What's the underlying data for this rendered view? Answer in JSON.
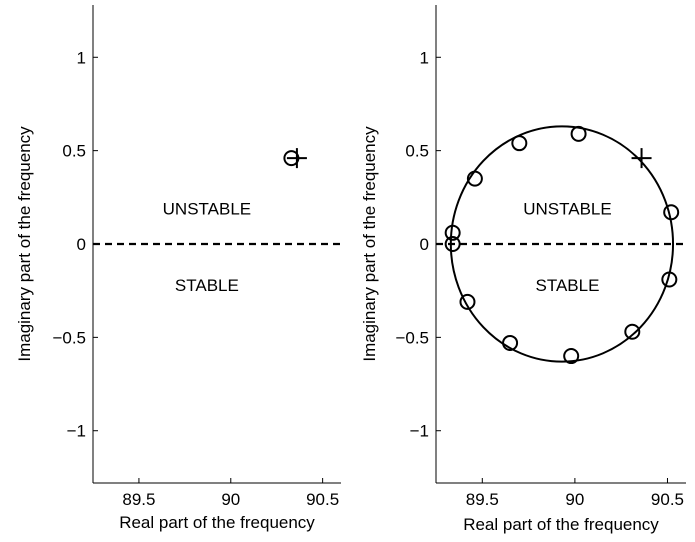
{
  "chart_data": [
    {
      "type": "scatter",
      "xlabel": "Real part of the frequency",
      "ylabel": "Imaginary part of the frequency",
      "xlim": [
        89.25,
        90.6
      ],
      "ylim": [
        -1.28,
        1.28
      ],
      "xticks": [
        89.5,
        90,
        90.5
      ],
      "yticks": [
        -1,
        -0.5,
        0,
        0.5,
        1
      ],
      "xtick_labels": [
        "89.5",
        "90",
        "90.5"
      ],
      "ytick_labels": [
        "−1",
        "−0.5",
        "0",
        "0.5",
        "1"
      ],
      "grid": false,
      "reference_line": {
        "y": 0,
        "style": "dashed"
      },
      "annotations": [
        {
          "text": "UNSTABLE",
          "x": 89.87,
          "y": 0.19
        },
        {
          "text": "STABLE",
          "x": 89.87,
          "y": -0.22
        }
      ],
      "series": [
        {
          "marker": "circle",
          "points": [
            {
              "x": 90.33,
              "y": 0.46
            }
          ]
        },
        {
          "marker": "plus",
          "points": [
            {
              "x": 90.36,
              "y": 0.46
            }
          ]
        }
      ]
    },
    {
      "type": "scatter",
      "xlabel": "Real part of the frequency",
      "ylabel": "Imaginary part of the frequency",
      "xlim": [
        89.25,
        90.6
      ],
      "ylim": [
        -1.28,
        1.28
      ],
      "xticks": [
        89.5,
        90,
        90.5
      ],
      "yticks": [
        -1,
        -0.5,
        0,
        0.5,
        1
      ],
      "xtick_labels": [
        "89.5",
        "90",
        "90.5"
      ],
      "ytick_labels": [
        "−1",
        "−0.5",
        "0",
        "0.5",
        "1"
      ],
      "grid": false,
      "reference_line": {
        "y": 0,
        "style": "dashed"
      },
      "annotations": [
        {
          "text": "UNSTABLE",
          "x": 89.96,
          "y": 0.19
        },
        {
          "text": "STABLE",
          "x": 89.96,
          "y": -0.22
        }
      ],
      "contour": {
        "shape": "circle",
        "center": {
          "x": 89.93,
          "y": 0.0
        },
        "radius_x": 0.6,
        "radius_y": 0.63
      },
      "series": [
        {
          "marker": "circle",
          "points": [
            {
              "x": 90.02,
              "y": 0.59
            },
            {
              "x": 89.7,
              "y": 0.54
            },
            {
              "x": 89.46,
              "y": 0.35
            },
            {
              "x": 89.34,
              "y": 0.06
            },
            {
              "x": 89.34,
              "y": 0.0
            },
            {
              "x": 89.42,
              "y": -0.31
            },
            {
              "x": 89.65,
              "y": -0.53
            },
            {
              "x": 89.98,
              "y": -0.6
            },
            {
              "x": 90.31,
              "y": -0.47
            },
            {
              "x": 90.51,
              "y": -0.19
            },
            {
              "x": 90.52,
              "y": 0.17
            }
          ]
        },
        {
          "marker": "plus",
          "points": [
            {
              "x": 90.36,
              "y": 0.46
            }
          ]
        }
      ]
    }
  ]
}
